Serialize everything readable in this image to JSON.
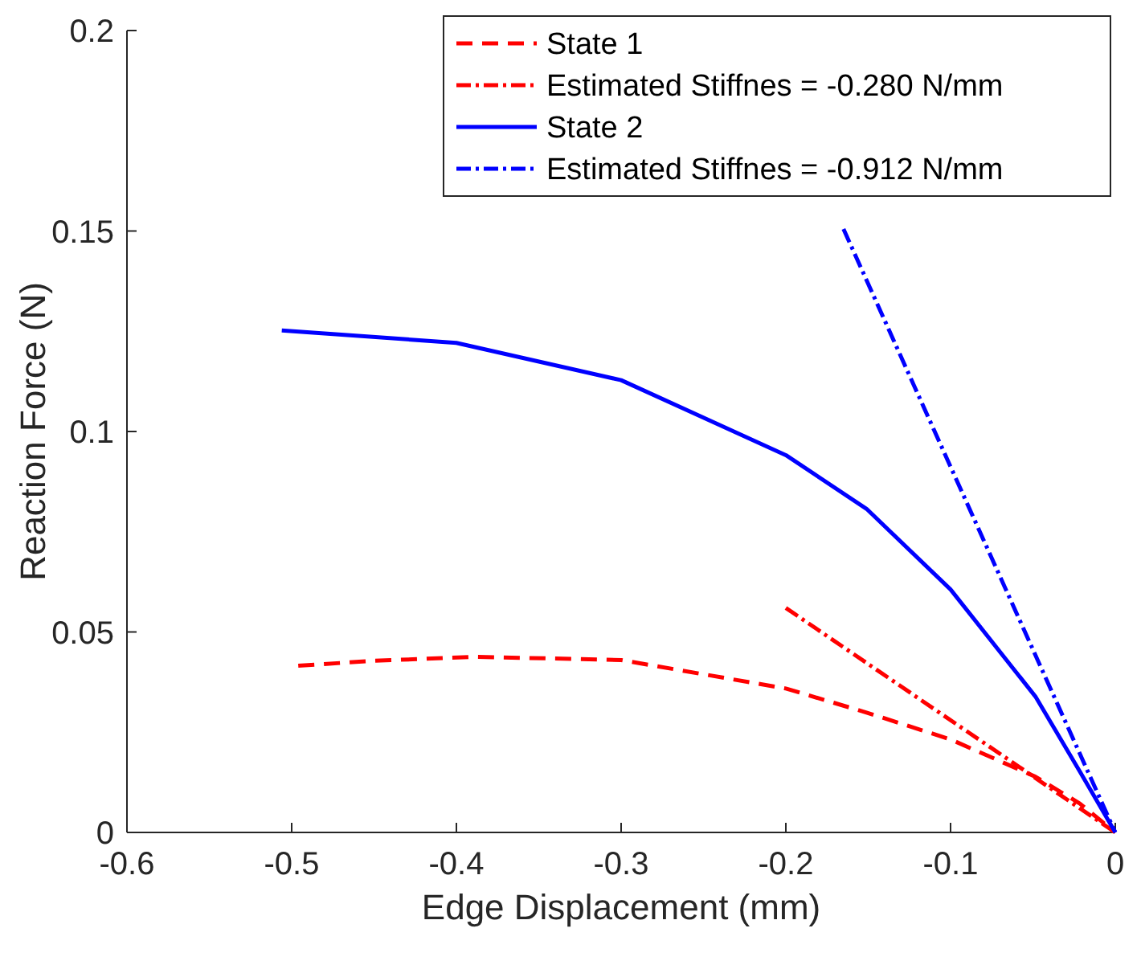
{
  "chart_data": {
    "type": "line",
    "xlabel": "Edge Displacement (mm)",
    "ylabel": "Reaction Force (N)",
    "xlim": [
      -0.6,
      0
    ],
    "ylim": [
      0,
      0.2
    ],
    "xticks": [
      -0.6,
      -0.5,
      -0.4,
      -0.3,
      -0.2,
      -0.1,
      0
    ],
    "yticks": [
      0,
      0.05,
      0.1,
      0.15,
      0.2
    ],
    "grid": false,
    "legend": "top right",
    "series": [
      {
        "name": "State 1",
        "color": "#ff0000",
        "line_style": "dashed",
        "x": [
          -0.496,
          -0.45,
          -0.388,
          -0.3,
          -0.2,
          -0.151,
          -0.1,
          -0.0485,
          -0.0215,
          0
        ],
        "values": [
          0.0416,
          0.0428,
          0.0438,
          0.043,
          0.0359,
          0.0299,
          0.0232,
          0.0139,
          0.0072,
          0
        ]
      },
      {
        "name": "Estimated Stiffnes = -0.280 N/mm",
        "color": "#ff0000",
        "line_style": "dashdot",
        "x": [
          -0.2,
          0
        ],
        "values": [
          0.056,
          0
        ]
      },
      {
        "name": "State 2",
        "color": "#0000ff",
        "line_style": "solid",
        "x": [
          -0.506,
          -0.4,
          -0.3,
          -0.2,
          -0.151,
          -0.1,
          -0.0485,
          -0.0215,
          0
        ],
        "values": [
          0.1252,
          0.1221,
          0.1128,
          0.0941,
          0.0807,
          0.0606,
          0.0339,
          0.0152,
          0
        ]
      },
      {
        "name": "Estimated Stiffnes = -0.912 N/mm",
        "color": "#0000ff",
        "line_style": "dashdot",
        "x": [
          -0.165,
          0
        ],
        "values": [
          0.1505,
          0
        ]
      }
    ]
  }
}
